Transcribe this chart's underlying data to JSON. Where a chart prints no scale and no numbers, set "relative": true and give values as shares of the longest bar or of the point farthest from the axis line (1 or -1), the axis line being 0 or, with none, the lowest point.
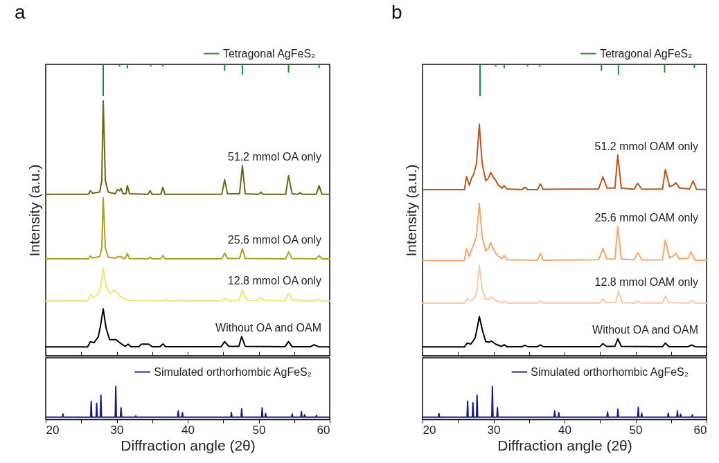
{
  "chart_data": [
    {
      "type": "line",
      "title": "a",
      "ylabel": "Intensity (a.u.)",
      "relative": true,
      "xlim": [
        20,
        60
      ],
      "xticks": [
        20,
        {
          "value": 25,
          "label": null
        },
        30,
        {
          "value": 35,
          "label": null
        },
        40,
        {
          "value": 45,
          "label": null
        },
        50,
        {
          "value": 55,
          "label": null
        },
        60
      ],
      "tick_labels": false,
      "legend": "top right",
      "series": [
        {
          "type": "bar",
          "name": "Tetragonal AgFeS₂",
          "color": "#1a8a3a",
          "x": [
            28.1,
            30.4,
            31.5,
            34.8,
            36.5,
            45.2,
            47.7,
            54.2,
            58.5
          ],
          "values": [
            -0.112,
            -0.008,
            -0.014,
            -0.008,
            -0.008,
            -0.023,
            -0.037,
            -0.029,
            -0.013
          ]
        },
        {
          "name": "51.2 mmol OA only",
          "color": "#6b6514",
          "x": [
            20,
            26.0,
            26.3,
            26.6,
            27.6,
            27.9,
            28.1,
            28.4,
            28.8,
            29.8,
            30.1,
            30.4,
            30.6,
            30.9,
            31.3,
            31.5,
            31.8,
            34.4,
            34.7,
            35.0,
            36.2,
            36.5,
            36.8,
            44.8,
            45.2,
            45.6,
            47.3,
            47.7,
            48.1,
            50.0,
            50.3,
            50.6,
            53.8,
            54.2,
            54.7,
            55.5,
            55.8,
            56.1,
            58.1,
            58.5,
            58.9,
            60
          ],
          "values": [
            -0.46,
            -0.46,
            -0.447,
            -0.456,
            -0.452,
            -0.412,
            -0.129,
            -0.412,
            -0.452,
            -0.458,
            -0.443,
            -0.447,
            -0.439,
            -0.458,
            -0.458,
            -0.429,
            -0.458,
            -0.46,
            -0.447,
            -0.46,
            -0.46,
            -0.435,
            -0.46,
            -0.46,
            -0.408,
            -0.458,
            -0.458,
            -0.358,
            -0.458,
            -0.46,
            -0.452,
            -0.46,
            -0.46,
            -0.394,
            -0.458,
            -0.46,
            -0.454,
            -0.46,
            -0.46,
            -0.429,
            -0.46,
            -0.46
          ]
        },
        {
          "name": "25.6 mmol OA only",
          "color": "#a9a122",
          "x": [
            20,
            26.0,
            26.3,
            26.6,
            27.6,
            27.9,
            28.1,
            28.4,
            28.8,
            29.8,
            30.2,
            30.6,
            30.9,
            31.2,
            31.5,
            31.8,
            34.4,
            34.7,
            35.0,
            36.2,
            36.5,
            36.8,
            44.8,
            45.2,
            45.6,
            47.3,
            47.7,
            48.1,
            53.8,
            54.2,
            54.7,
            58.1,
            58.5,
            58.9,
            60
          ],
          "values": [
            -0.688,
            -0.688,
            -0.678,
            -0.685,
            -0.68,
            -0.65,
            -0.472,
            -0.65,
            -0.682,
            -0.686,
            -0.68,
            -0.68,
            -0.687,
            -0.687,
            -0.669,
            -0.687,
            -0.688,
            -0.682,
            -0.688,
            -0.688,
            -0.676,
            -0.688,
            -0.688,
            -0.668,
            -0.687,
            -0.687,
            -0.652,
            -0.687,
            -0.688,
            -0.664,
            -0.687,
            -0.688,
            -0.677,
            -0.688,
            -0.688
          ]
        },
        {
          "name": "12.8 mmol OA only",
          "color": "#ebe479",
          "x": [
            20,
            25.9,
            26.3,
            26.8,
            27.5,
            27.8,
            28.1,
            28.5,
            29.0,
            29.7,
            30.4,
            31.5,
            36.4,
            36.8,
            37.2,
            38.5,
            38.9,
            39.4,
            44.8,
            45.2,
            45.6,
            47.2,
            47.7,
            48.3,
            49.8,
            50.3,
            50.9,
            53.7,
            54.2,
            54.8,
            55.4,
            55.8,
            56.2,
            57.8,
            58.2,
            58.7,
            60
          ],
          "values": [
            -0.837,
            -0.837,
            -0.814,
            -0.825,
            -0.809,
            -0.784,
            -0.721,
            -0.784,
            -0.812,
            -0.798,
            -0.82,
            -0.835,
            -0.837,
            -0.831,
            -0.837,
            -0.837,
            -0.833,
            -0.837,
            -0.837,
            -0.827,
            -0.836,
            -0.836,
            -0.797,
            -0.835,
            -0.836,
            -0.827,
            -0.836,
            -0.836,
            -0.81,
            -0.835,
            -0.836,
            -0.833,
            -0.837,
            -0.837,
            -0.831,
            -0.837,
            -0.837
          ]
        },
        {
          "name": "Without OA and OAM",
          "color": "#000000",
          "x": [
            20,
            25.9,
            26.3,
            26.8,
            27.4,
            27.7,
            28.1,
            28.5,
            29.0,
            29.9,
            30.6,
            31.2,
            31.6,
            32.0,
            33.1,
            33.5,
            34.5,
            35.0,
            36.1,
            36.5,
            36.9,
            44.7,
            45.2,
            45.8,
            47.2,
            47.6,
            48.1,
            53.7,
            54.2,
            54.7,
            57.3,
            57.8,
            58.4,
            60
          ],
          "values": [
            -1,
            -1,
            -0.981,
            -0.985,
            -0.964,
            -0.928,
            -0.865,
            -0.933,
            -0.974,
            -0.974,
            -0.988,
            -0.998,
            -0.99,
            -0.999,
            -0.999,
            -0.99,
            -0.99,
            -0.999,
            -0.999,
            -0.989,
            -0.999,
            -0.999,
            -0.981,
            -0.998,
            -0.998,
            -0.963,
            -0.998,
            -0.999,
            -0.981,
            -0.999,
            -0.999,
            -0.992,
            -0.999,
            -1
          ]
        }
      ]
    },
    {
      "type": "line",
      "relative": true,
      "xlabel": "Diffraction angle (2θ)",
      "xlim": [
        20,
        60
      ],
      "xticks": [
        20,
        {
          "value": 25,
          "label": null
        },
        30,
        {
          "value": 35,
          "label": null
        },
        40,
        {
          "value": 45,
          "label": null
        },
        50,
        {
          "value": 55,
          "label": null
        },
        60
      ],
      "tick_labels": "x",
      "legend": "top right",
      "series": [
        {
          "name": "Simulated orthorhombic AgFeS₂",
          "color": "#1a1a80",
          "x": [
            20,
            22.35,
            22.43,
            22.51,
            26.33,
            26.41,
            26.49,
            27.1,
            27.18,
            27.26,
            27.69,
            27.77,
            27.85,
            29.79,
            29.87,
            29.95,
            30.53,
            30.61,
            30.69,
            32.61,
            32.69,
            32.77,
            38.59,
            38.67,
            38.75,
            39.18,
            39.26,
            39.34,
            46.07,
            46.15,
            46.23,
            47.52,
            47.6,
            47.68,
            50.41,
            50.49,
            50.57,
            50.89,
            50.97,
            51.05,
            54.64,
            54.72,
            54.8,
            55.94,
            56.02,
            56.1,
            56.39,
            56.47,
            56.55,
            58.04,
            58.12,
            58.2,
            60
          ],
          "values": [
            0.07,
            0.07,
            0.161,
            0.07,
            0.07,
            0.545,
            0.07,
            0.07,
            0.49,
            0.07,
            0.07,
            0.734,
            0.07,
            0.07,
            1,
            0.07,
            0.07,
            0.35,
            0.07,
            0.07,
            0.105,
            0.07,
            0.07,
            0.259,
            0.07,
            0.07,
            0.21,
            0.07,
            0.07,
            0.21,
            0.07,
            0.07,
            0.315,
            0.07,
            0.07,
            0.35,
            0.07,
            0.07,
            0.175,
            0.07,
            0.07,
            0.161,
            0.07,
            0.07,
            0.231,
            0.07,
            0.07,
            0.14,
            0.07,
            0.07,
            0.119,
            0.07,
            0.07
          ]
        }
      ]
    },
    {
      "type": "line",
      "title": "b",
      "ylabel": "Intensity (a.u.)",
      "relative": true,
      "xlim": [
        20,
        60
      ],
      "xticks": [
        20,
        {
          "value": 25,
          "label": null
        },
        30,
        {
          "value": 35,
          "label": null
        },
        40,
        {
          "value": 45,
          "label": null
        },
        50,
        {
          "value": 55,
          "label": null
        },
        60
      ],
      "tick_labels": false,
      "legend": "top right",
      "series": [
        {
          "type": "bar",
          "name": "Tetragonal AgFeS₂",
          "color": "#1a8a3a",
          "x": [
            28.1,
            30.3,
            31.5,
            34.8,
            36.5,
            45.2,
            47.6,
            54.1,
            58.3
          ],
          "values": [
            -0.112,
            -0.008,
            -0.014,
            -0.008,
            -0.008,
            -0.023,
            -0.037,
            -0.029,
            -0.013
          ]
        },
        {
          "name": "51.2 mmol OAM only",
          "color": "#b5571c",
          "x": [
            20,
            25.9,
            26.2,
            26.6,
            26.9,
            27.2,
            27.6,
            28.0,
            28.4,
            28.9,
            29.3,
            29.6,
            30.0,
            30.3,
            30.7,
            31.2,
            31.5,
            31.9,
            34.0,
            34.4,
            34.8,
            36.2,
            36.6,
            37.0,
            44.8,
            45.4,
            46.0,
            47.1,
            47.5,
            48.0,
            49.8,
            50.3,
            50.9,
            53.8,
            54.2,
            54.8,
            55.3,
            55.7,
            56.2,
            57.6,
            58.1,
            58.6,
            60
          ],
          "values": [
            -0.443,
            -0.443,
            -0.397,
            -0.428,
            -0.402,
            -0.39,
            -0.351,
            -0.212,
            -0.351,
            -0.412,
            -0.402,
            -0.382,
            -0.4,
            -0.41,
            -0.428,
            -0.438,
            -0.429,
            -0.441,
            -0.443,
            -0.435,
            -0.443,
            -0.443,
            -0.423,
            -0.442,
            -0.441,
            -0.398,
            -0.438,
            -0.438,
            -0.321,
            -0.438,
            -0.442,
            -0.421,
            -0.442,
            -0.441,
            -0.372,
            -0.433,
            -0.428,
            -0.419,
            -0.438,
            -0.441,
            -0.413,
            -0.442,
            -0.443
          ]
        },
        {
          "name": "25.6 mmol OAM only",
          "color": "#f4a46c",
          "x": [
            20,
            25.9,
            26.2,
            26.6,
            26.9,
            27.2,
            27.6,
            28.0,
            28.4,
            28.9,
            29.3,
            29.6,
            30.0,
            30.5,
            31.2,
            31.5,
            31.9,
            36.2,
            36.6,
            37.0,
            44.8,
            45.4,
            46.0,
            47.1,
            47.5,
            48.0,
            49.8,
            50.3,
            50.9,
            53.8,
            54.2,
            54.8,
            55.3,
            55.7,
            56.2,
            57.4,
            57.8,
            58.4,
            60
          ],
          "values": [
            -0.694,
            -0.694,
            -0.652,
            -0.68,
            -0.655,
            -0.639,
            -0.608,
            -0.492,
            -0.608,
            -0.66,
            -0.65,
            -0.631,
            -0.655,
            -0.675,
            -0.688,
            -0.676,
            -0.691,
            -0.693,
            -0.669,
            -0.693,
            -0.691,
            -0.653,
            -0.689,
            -0.689,
            -0.574,
            -0.689,
            -0.692,
            -0.666,
            -0.692,
            -0.691,
            -0.621,
            -0.685,
            -0.678,
            -0.669,
            -0.689,
            -0.686,
            -0.664,
            -0.693,
            -0.694
          ]
        },
        {
          "name": "12.8 mmol OAM only",
          "color": "#f8c9a2",
          "x": [
            20,
            25.9,
            26.3,
            26.8,
            27.4,
            27.7,
            28.0,
            28.4,
            28.9,
            29.4,
            29.7,
            30.2,
            31.2,
            31.5,
            31.9,
            36.2,
            36.6,
            37.0,
            45.0,
            45.4,
            45.8,
            47.2,
            47.6,
            48.1,
            49.9,
            50.3,
            50.8,
            53.8,
            54.2,
            54.7,
            57.5,
            57.9,
            58.4,
            60
          ],
          "values": [
            -0.845,
            -0.845,
            -0.829,
            -0.837,
            -0.825,
            -0.794,
            -0.712,
            -0.794,
            -0.833,
            -0.829,
            -0.823,
            -0.835,
            -0.844,
            -0.837,
            -0.844,
            -0.844,
            -0.837,
            -0.844,
            -0.844,
            -0.829,
            -0.843,
            -0.843,
            -0.802,
            -0.843,
            -0.844,
            -0.838,
            -0.844,
            -0.844,
            -0.819,
            -0.843,
            -0.844,
            -0.835,
            -0.844,
            -0.845
          ]
        },
        {
          "name": "Without OA and OAM",
          "color": "#000000",
          "x": [
            20,
            25.9,
            26.3,
            26.8,
            27.4,
            27.7,
            28.0,
            28.4,
            28.9,
            29.4,
            29.7,
            30.3,
            31.1,
            31.5,
            31.9,
            34.0,
            34.4,
            34.8,
            36.2,
            36.6,
            37.0,
            45.0,
            45.4,
            45.9,
            47.1,
            47.5,
            48.0,
            53.8,
            54.2,
            54.7,
            57.4,
            57.9,
            58.4,
            60
          ],
          "values": [
            -1,
            -1,
            -0.986,
            -0.99,
            -0.969,
            -0.933,
            -0.892,
            -0.938,
            -0.981,
            -0.983,
            -0.979,
            -0.99,
            -0.998,
            -0.992,
            -0.999,
            -0.999,
            -0.994,
            -0.999,
            -0.999,
            -0.993,
            -0.999,
            -0.999,
            -0.988,
            -0.998,
            -0.998,
            -0.971,
            -0.998,
            -0.999,
            -0.986,
            -0.999,
            -0.999,
            -0.993,
            -0.999,
            -1
          ]
        }
      ]
    },
    {
      "type": "line",
      "relative": true,
      "xlabel": "Diffraction angle (2θ)",
      "xlim": [
        20,
        60
      ],
      "xticks": [
        20,
        {
          "value": 25,
          "label": null
        },
        30,
        {
          "value": 35,
          "label": null
        },
        40,
        {
          "value": 45,
          "label": null
        },
        50,
        {
          "value": 55,
          "label": null
        },
        60
      ],
      "tick_labels": "x",
      "legend": "top right",
      "series": [
        {
          "name": "Simulated orthorhombic AgFeS₂",
          "color": "#1a1a80",
          "x": [
            20,
            22.24,
            22.32,
            22.4,
            26.27,
            26.35,
            26.43,
            27.02,
            27.1,
            27.18,
            27.6,
            27.68,
            27.76,
            29.76,
            29.84,
            29.92,
            30.47,
            30.55,
            30.63,
            38.53,
            38.61,
            38.69,
            39.11,
            39.19,
            39.27,
            45.98,
            46.06,
            46.14,
            47.44,
            47.52,
            47.6,
            50.31,
            50.39,
            50.47,
            50.79,
            50.87,
            50.95,
            54.53,
            54.61,
            54.69,
            55.82,
            55.9,
            55.98,
            56.27,
            56.35,
            56.43,
            57.92,
            58.0,
            58.08,
            60
          ],
          "values": [
            0.069,
            0.069,
            0.172,
            0.069,
            0.069,
            0.552,
            0.069,
            0.069,
            0.503,
            0.069,
            0.069,
            0.738,
            0.069,
            0.069,
            1,
            0.069,
            0.069,
            0.359,
            0.069,
            0.069,
            0.255,
            0.069,
            0.069,
            0.207,
            0.069,
            0.069,
            0.228,
            0.069,
            0.069,
            0.31,
            0.069,
            0.069,
            0.366,
            0.069,
            0.069,
            0.186,
            0.069,
            0.069,
            0.186,
            0.069,
            0.069,
            0.255,
            0.069,
            0.069,
            0.159,
            0.069,
            0.069,
            0.138,
            0.069,
            0.069
          ]
        }
      ]
    }
  ]
}
